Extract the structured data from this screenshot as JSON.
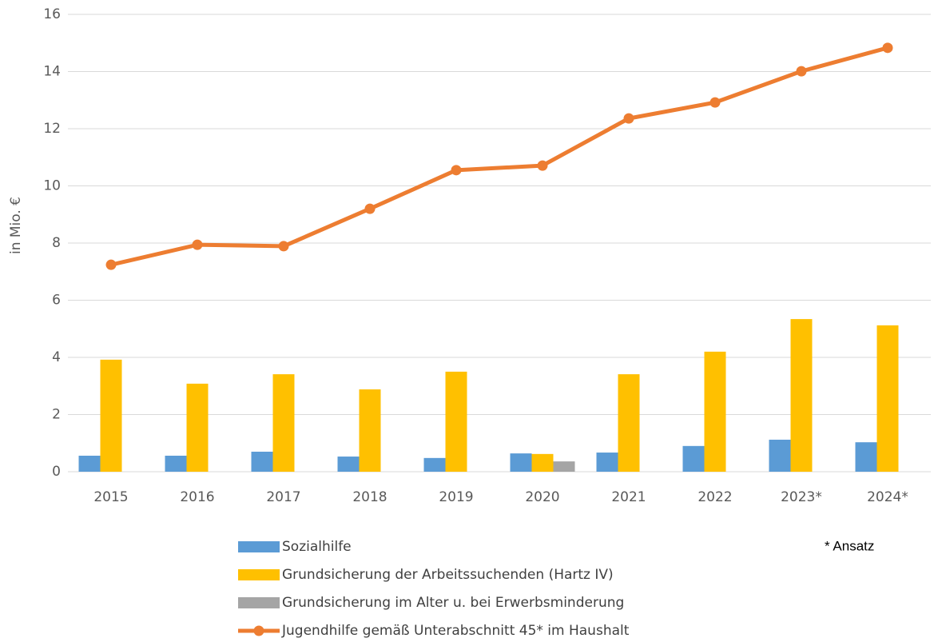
{
  "chart_data": {
    "type": "bar",
    "ylabel": "in Mio. €",
    "annotation": "* Ansatz",
    "categories": [
      "2015",
      "2016",
      "2017",
      "2018",
      "2019",
      "2020",
      "2021",
      "2022",
      "2023*",
      "2024*"
    ],
    "series": [
      {
        "name": "Sozialhilfe",
        "color": "#5b9bd5",
        "values": [
          0.56,
          0.56,
          0.7,
          0.53,
          0.48,
          0.64,
          0.67,
          0.9,
          1.12,
          1.03
        ]
      },
      {
        "name": "Grundsicherung der Arbeitssuchenden  (Hartz IV)",
        "color": "#ffc000",
        "values": [
          3.92,
          3.08,
          3.41,
          2.88,
          3.5,
          0.62,
          3.41,
          4.2,
          5.34,
          5.12
        ]
      },
      {
        "name": "Grundsicherung im Alter u. bei Erwerbsminderung",
        "color": "#a5a5a5",
        "values": [
          null,
          null,
          null,
          null,
          null,
          0.36,
          null,
          null,
          null,
          null
        ]
      },
      {
        "name": "Jugendhilfe gemäß Unterabschnitt 45* im Haushalt",
        "color": "#ed7d31",
        "type": "line",
        "values": [
          7.24,
          7.94,
          7.89,
          9.2,
          10.55,
          10.71,
          12.36,
          12.92,
          14.01,
          14.83
        ]
      }
    ],
    "ylim": [
      0,
      16
    ],
    "yticks": [
      0,
      2,
      4,
      6,
      8,
      10,
      12,
      14,
      16
    ],
    "grid": true
  }
}
